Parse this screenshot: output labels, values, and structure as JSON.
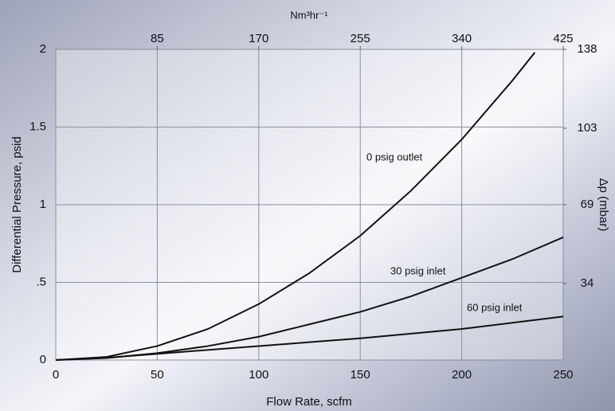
{
  "chart_data": {
    "type": "line",
    "xlabel": "Flow Rate, scfm",
    "ylabel": "Differential Pressure, psid",
    "x2label": "Nm³hr⁻¹",
    "y2label": "Δp (mbar)",
    "xlim": [
      0,
      250
    ],
    "xticks": [
      0,
      50,
      100,
      150,
      200,
      250
    ],
    "ylim": [
      0,
      2
    ],
    "yticks": [
      0,
      {
        "value": 0.5,
        "label": ".5"
      },
      1,
      1.5,
      2
    ],
    "x2lim": [
      0,
      425
    ],
    "x2ticks": [
      85,
      170,
      255,
      340,
      425
    ],
    "y2lim": [
      0,
      138
    ],
    "y2ticks": [
      34,
      69,
      103,
      138
    ],
    "grid": true,
    "series": [
      {
        "name": "0 psig outlet",
        "color": "#111111",
        "x": [
          0,
          25,
          50,
          75,
          100,
          125,
          150,
          175,
          200,
          225,
          236
        ],
        "values": [
          0,
          0.02,
          0.09,
          0.2,
          0.36,
          0.56,
          0.8,
          1.09,
          1.42,
          1.8,
          1.98
        ]
      },
      {
        "name": "30 psig inlet",
        "color": "#111111",
        "x": [
          0,
          25,
          50,
          75,
          100,
          125,
          150,
          175,
          200,
          225,
          250
        ],
        "values": [
          0,
          0.013,
          0.044,
          0.09,
          0.15,
          0.23,
          0.31,
          0.41,
          0.53,
          0.65,
          0.79
        ]
      },
      {
        "name": "60 psig inlet",
        "color": "#111111",
        "x": [
          0,
          25,
          50,
          100,
          150,
          200,
          250
        ],
        "values": [
          0,
          0.015,
          0.04,
          0.09,
          0.14,
          0.2,
          0.28
        ]
      }
    ]
  }
}
